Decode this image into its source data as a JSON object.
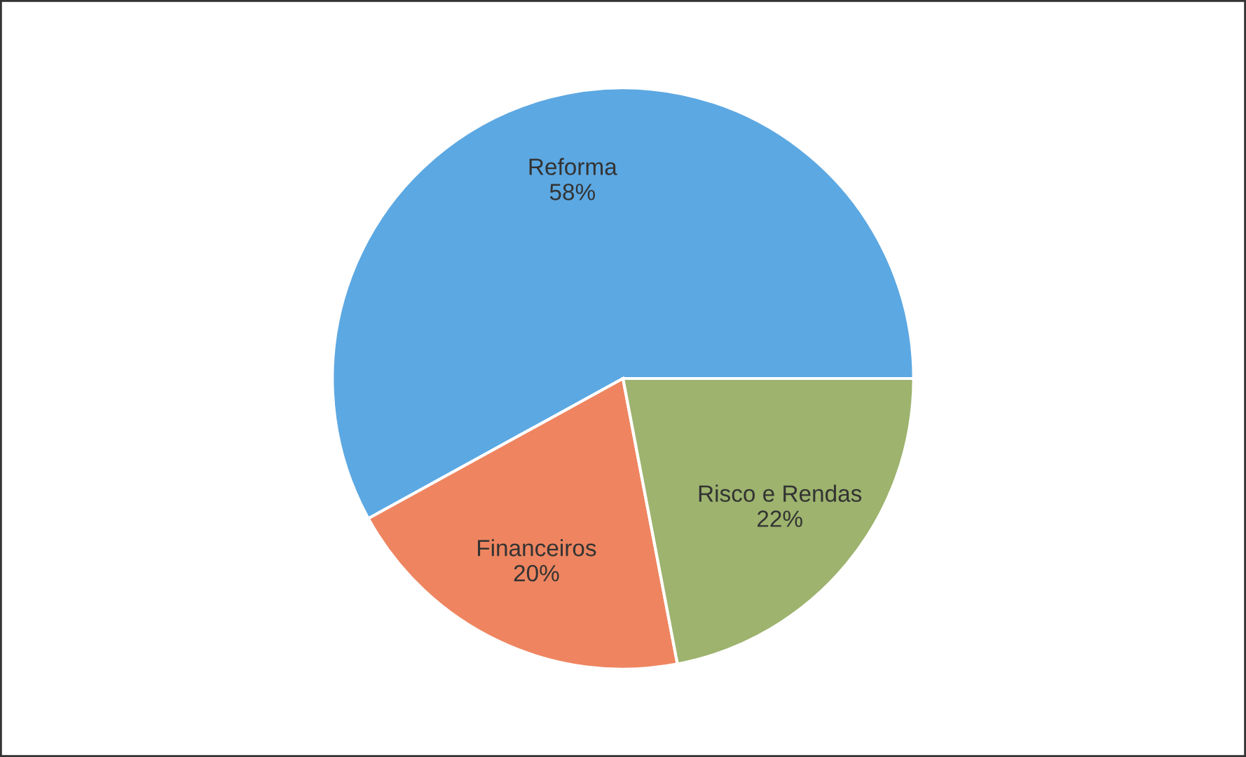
{
  "chart_data": {
    "type": "pie",
    "categories": [
      "Reforma",
      "Financeiros",
      "Risco e Rendas"
    ],
    "values": [
      58,
      20,
      22
    ],
    "value_labels": [
      "58%",
      "20%",
      "22%"
    ],
    "colors": [
      "#5ca8e2",
      "#ee8560",
      "#9db36e"
    ],
    "legend": false
  }
}
